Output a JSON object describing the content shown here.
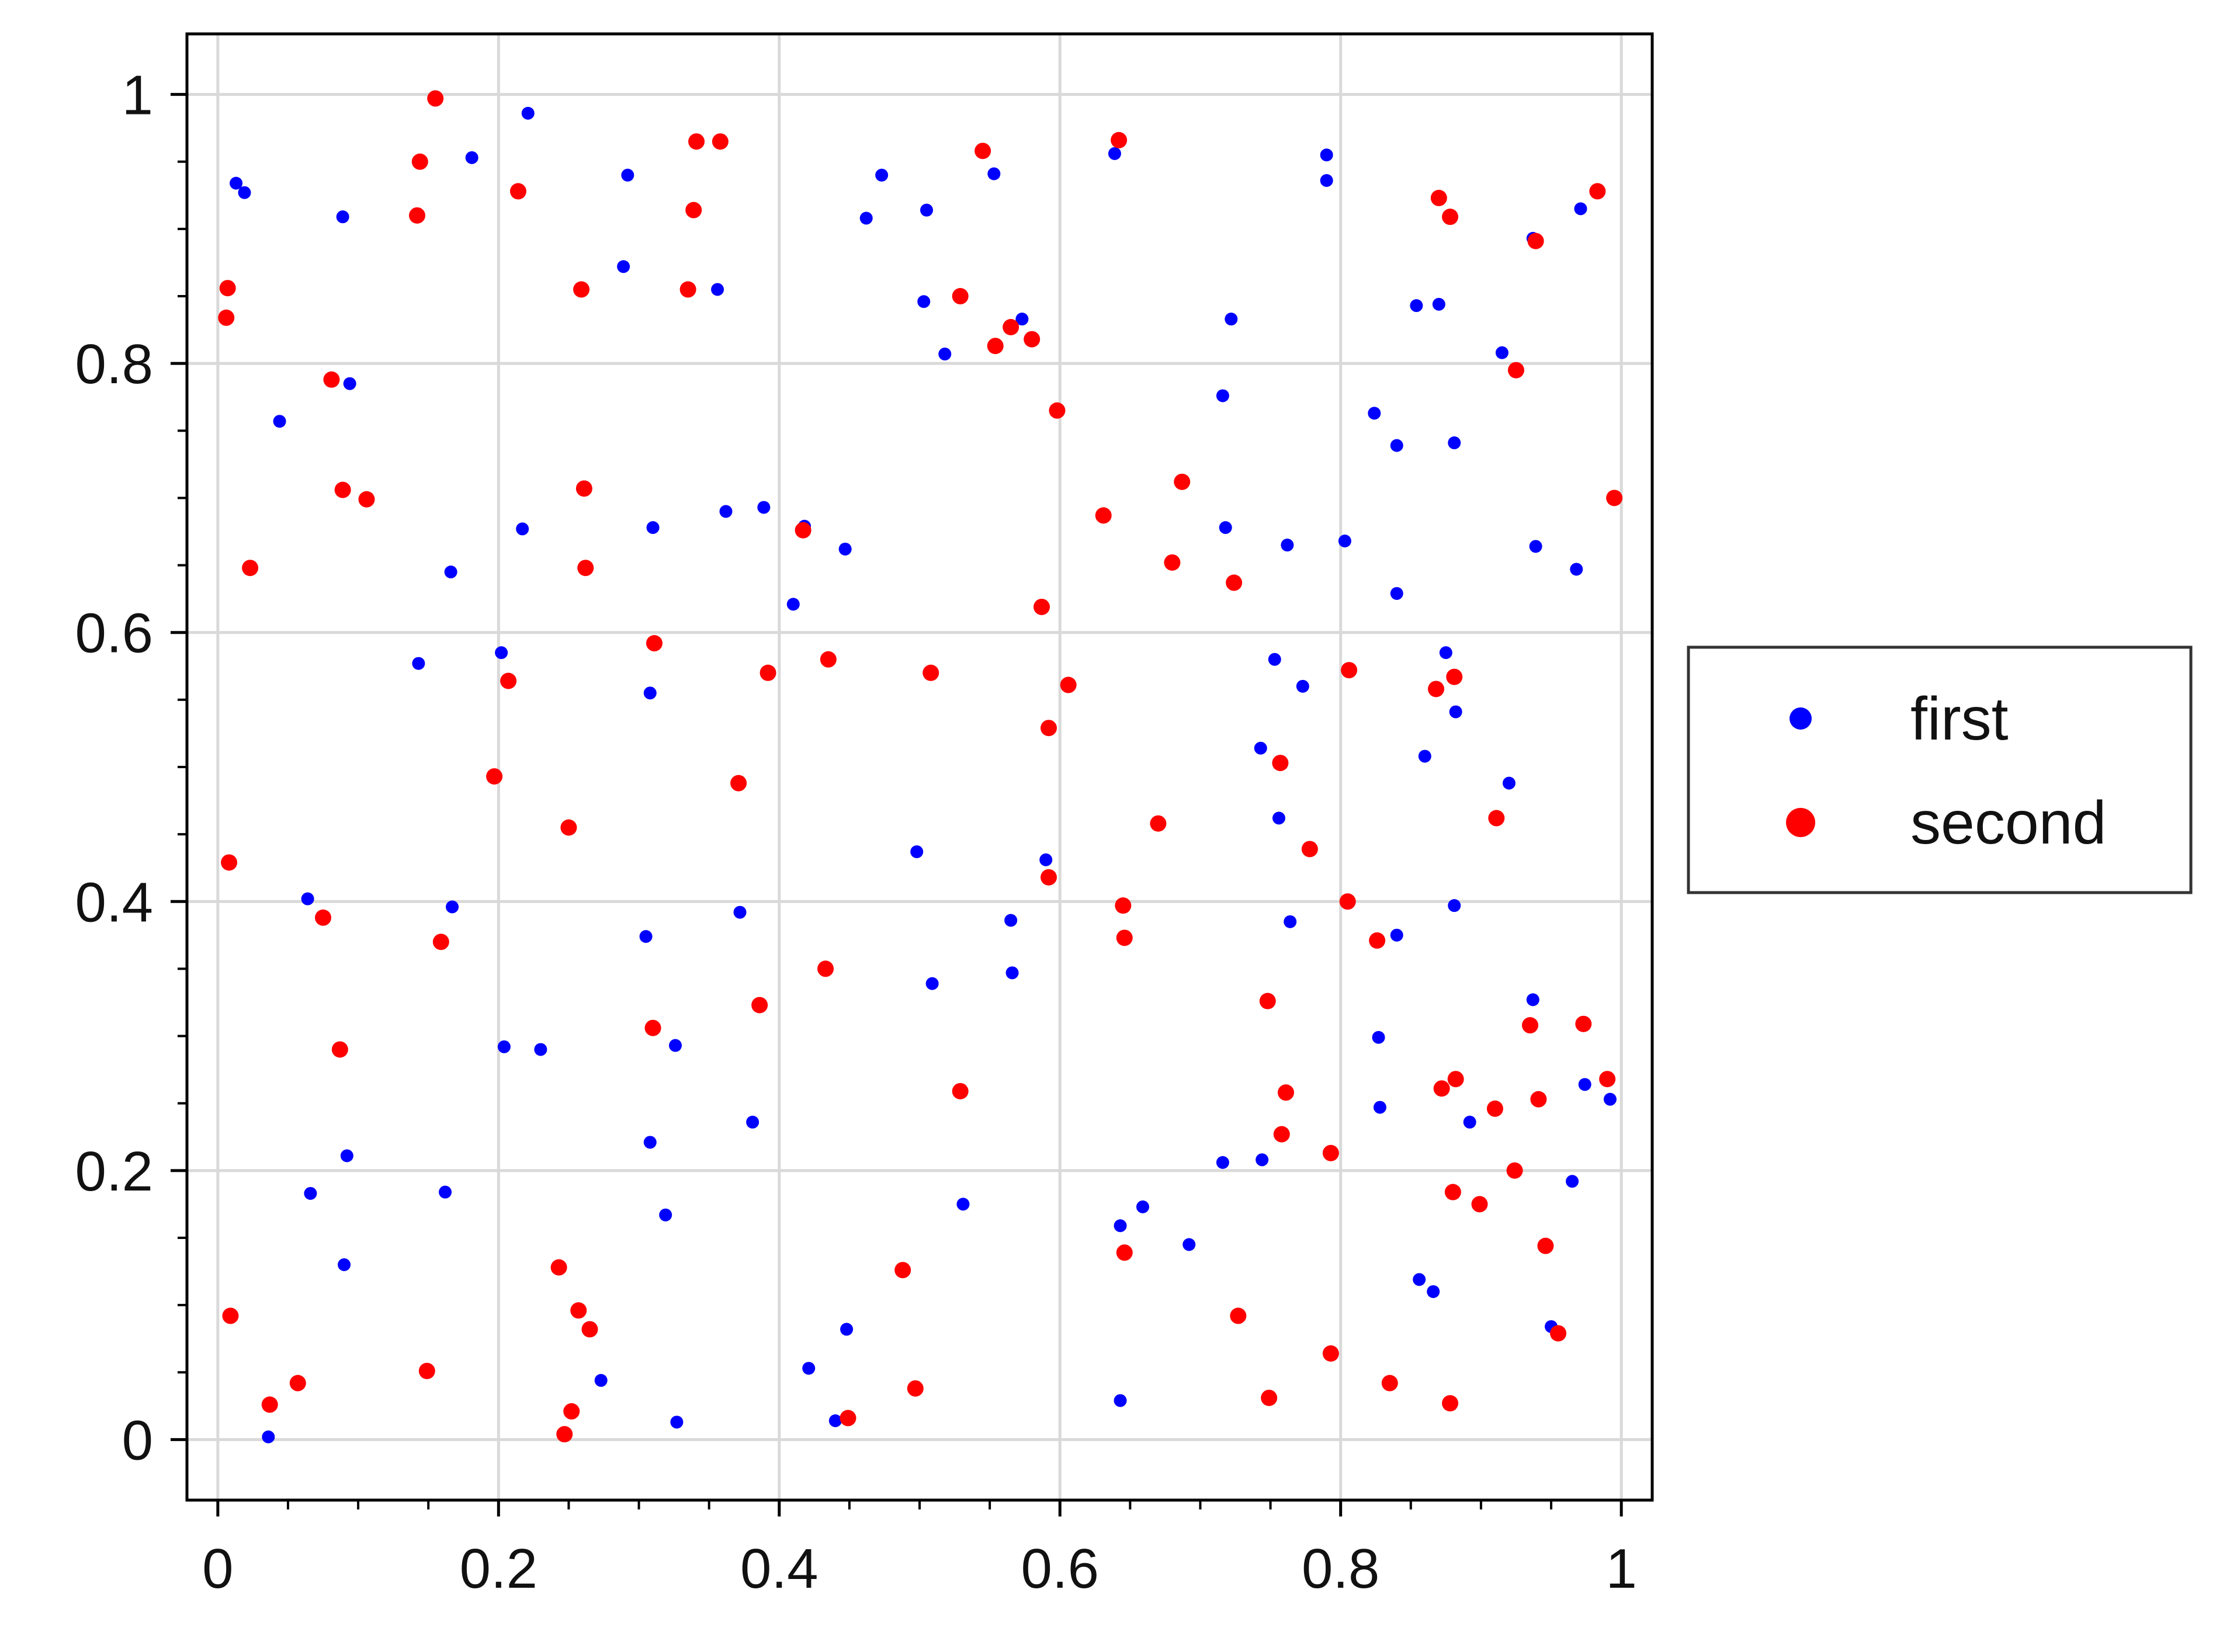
{
  "chart_data": {
    "type": "scatter",
    "title": "",
    "xlabel": "",
    "ylabel": "",
    "xlim": [
      -0.022,
      1.022
    ],
    "ylim": [
      -0.045,
      1.045
    ],
    "grid": true,
    "legend_placement": "outside-right",
    "x_ticks": [
      0,
      0.2,
      0.4,
      0.6,
      0.8,
      1
    ],
    "x_tick_labels": [
      "0",
      "0.2",
      "0.4",
      "0.6",
      "0.8",
      "1"
    ],
    "y_ticks": [
      0,
      0.2,
      0.4,
      0.6,
      0.8,
      1
    ],
    "y_tick_labels": [
      "0",
      "0.2",
      "0.4",
      "0.6",
      "0.8",
      "1"
    ],
    "series": [
      {
        "name": "first",
        "color": "#0000ff",
        "points": [
          [
            0.013,
            0.934
          ],
          [
            0.019,
            0.927
          ],
          [
            0.089,
            0.909
          ],
          [
            0.044,
            0.757
          ],
          [
            0.094,
            0.785
          ],
          [
            0.166,
            0.645
          ],
          [
            0.143,
            0.577
          ],
          [
            0.064,
            0.402
          ],
          [
            0.167,
            0.396
          ],
          [
            0.066,
            0.183
          ],
          [
            0.092,
            0.211
          ],
          [
            0.09,
            0.13
          ],
          [
            0.036,
            0.002
          ],
          [
            0.162,
            0.184
          ],
          [
            0.181,
            0.953
          ],
          [
            0.221,
            0.986
          ],
          [
            0.292,
            0.94
          ],
          [
            0.289,
            0.872
          ],
          [
            0.217,
            0.677
          ],
          [
            0.31,
            0.678
          ],
          [
            0.202,
            0.585
          ],
          [
            0.308,
            0.555
          ],
          [
            0.305,
            0.374
          ],
          [
            0.204,
            0.292
          ],
          [
            0.23,
            0.29
          ],
          [
            0.326,
            0.293
          ],
          [
            0.308,
            0.221
          ],
          [
            0.319,
            0.167
          ],
          [
            0.273,
            0.044
          ],
          [
            0.327,
            0.013
          ],
          [
            0.356,
            0.855
          ],
          [
            0.362,
            0.69
          ],
          [
            0.389,
            0.693
          ],
          [
            0.418,
            0.679
          ],
          [
            0.447,
            0.662
          ],
          [
            0.41,
            0.621
          ],
          [
            0.372,
            0.392
          ],
          [
            0.381,
            0.236
          ],
          [
            0.421,
            0.053
          ],
          [
            0.44,
            0.014
          ],
          [
            0.448,
            0.082
          ],
          [
            0.473,
            0.94
          ],
          [
            0.462,
            0.908
          ],
          [
            0.505,
            0.914
          ],
          [
            0.503,
            0.846
          ],
          [
            0.518,
            0.807
          ],
          [
            0.553,
            0.941
          ],
          [
            0.573,
            0.833
          ],
          [
            0.498,
            0.437
          ],
          [
            0.509,
            0.339
          ],
          [
            0.565,
            0.386
          ],
          [
            0.566,
            0.347
          ],
          [
            0.59,
            0.431
          ],
          [
            0.531,
            0.175
          ],
          [
            0.639,
            0.956
          ],
          [
            0.716,
            0.776
          ],
          [
            0.722,
            0.833
          ],
          [
            0.718,
            0.678
          ],
          [
            0.762,
            0.665
          ],
          [
            0.753,
            0.58
          ],
          [
            0.773,
            0.56
          ],
          [
            0.743,
            0.514
          ],
          [
            0.756,
            0.462
          ],
          [
            0.764,
            0.385
          ],
          [
            0.643,
            0.159
          ],
          [
            0.659,
            0.173
          ],
          [
            0.692,
            0.145
          ],
          [
            0.716,
            0.206
          ],
          [
            0.744,
            0.208
          ],
          [
            0.643,
            0.029
          ],
          [
            0.79,
            0.955
          ],
          [
            0.79,
            0.936
          ],
          [
            0.854,
            0.843
          ],
          [
            0.87,
            0.844
          ],
          [
            0.824,
            0.763
          ],
          [
            0.84,
            0.739
          ],
          [
            0.881,
            0.741
          ],
          [
            0.803,
            0.668
          ],
          [
            0.84,
            0.629
          ],
          [
            0.875,
            0.585
          ],
          [
            0.882,
            0.541
          ],
          [
            0.86,
            0.508
          ],
          [
            0.84,
            0.375
          ],
          [
            0.881,
            0.397
          ],
          [
            0.827,
            0.299
          ],
          [
            0.828,
            0.247
          ],
          [
            0.856,
            0.119
          ],
          [
            0.866,
            0.11
          ],
          [
            0.892,
            0.236
          ],
          [
            0.937,
            0.893
          ],
          [
            0.971,
            0.915
          ],
          [
            0.915,
            0.808
          ],
          [
            0.939,
            0.664
          ],
          [
            0.968,
            0.647
          ],
          [
            0.92,
            0.488
          ],
          [
            0.937,
            0.327
          ],
          [
            0.974,
            0.264
          ],
          [
            0.992,
            0.253
          ],
          [
            0.965,
            0.192
          ],
          [
            0.95,
            0.084
          ]
        ]
      },
      {
        "name": "second",
        "color": "#ff0000",
        "points": [
          [
            0.155,
            0.997
          ],
          [
            0.144,
            0.95
          ],
          [
            0.142,
            0.91
          ],
          [
            0.007,
            0.856
          ],
          [
            0.006,
            0.834
          ],
          [
            0.081,
            0.788
          ],
          [
            0.089,
            0.706
          ],
          [
            0.106,
            0.699
          ],
          [
            0.023,
            0.648
          ],
          [
            0.008,
            0.429
          ],
          [
            0.075,
            0.388
          ],
          [
            0.159,
            0.37
          ],
          [
            0.087,
            0.29
          ],
          [
            0.009,
            0.092
          ],
          [
            0.037,
            0.026
          ],
          [
            0.057,
            0.042
          ],
          [
            0.149,
            0.051
          ],
          [
            0.214,
            0.928
          ],
          [
            0.259,
            0.855
          ],
          [
            0.261,
            0.707
          ],
          [
            0.262,
            0.648
          ],
          [
            0.207,
            0.564
          ],
          [
            0.197,
            0.493
          ],
          [
            0.25,
            0.455
          ],
          [
            0.243,
            0.128
          ],
          [
            0.257,
            0.096
          ],
          [
            0.265,
            0.082
          ],
          [
            0.252,
            0.021
          ],
          [
            0.247,
            0.004
          ],
          [
            0.341,
            0.965
          ],
          [
            0.358,
            0.965
          ],
          [
            0.339,
            0.914
          ],
          [
            0.335,
            0.855
          ],
          [
            0.311,
            0.592
          ],
          [
            0.392,
            0.57
          ],
          [
            0.371,
            0.488
          ],
          [
            0.31,
            0.306
          ],
          [
            0.386,
            0.323
          ],
          [
            0.435,
            0.58
          ],
          [
            0.417,
            0.676
          ],
          [
            0.433,
            0.35
          ],
          [
            0.449,
            0.016
          ],
          [
            0.545,
            0.958
          ],
          [
            0.529,
            0.85
          ],
          [
            0.565,
            0.827
          ],
          [
            0.554,
            0.813
          ],
          [
            0.58,
            0.818
          ],
          [
            0.508,
            0.57
          ],
          [
            0.488,
            0.126
          ],
          [
            0.497,
            0.038
          ],
          [
            0.529,
            0.259
          ],
          [
            0.642,
            0.966
          ],
          [
            0.598,
            0.765
          ],
          [
            0.631,
            0.687
          ],
          [
            0.587,
            0.619
          ],
          [
            0.606,
            0.561
          ],
          [
            0.592,
            0.529
          ],
          [
            0.592,
            0.418
          ],
          [
            0.645,
            0.397
          ],
          [
            0.646,
            0.373
          ],
          [
            0.646,
            0.139
          ],
          [
            0.687,
            0.712
          ],
          [
            0.68,
            0.652
          ],
          [
            0.724,
            0.637
          ],
          [
            0.67,
            0.458
          ],
          [
            0.757,
            0.503
          ],
          [
            0.778,
            0.439
          ],
          [
            0.748,
            0.326
          ],
          [
            0.761,
            0.258
          ],
          [
            0.758,
            0.227
          ],
          [
            0.727,
            0.092
          ],
          [
            0.749,
            0.031
          ],
          [
            0.87,
            0.923
          ],
          [
            0.878,
            0.909
          ],
          [
            0.806,
            0.572
          ],
          [
            0.868,
            0.558
          ],
          [
            0.881,
            0.567
          ],
          [
            0.805,
            0.4
          ],
          [
            0.826,
            0.371
          ],
          [
            0.793,
            0.213
          ],
          [
            0.872,
            0.261
          ],
          [
            0.882,
            0.268
          ],
          [
            0.88,
            0.184
          ],
          [
            0.899,
            0.175
          ],
          [
            0.793,
            0.064
          ],
          [
            0.835,
            0.042
          ],
          [
            0.878,
            0.027
          ],
          [
            0.983,
            0.928
          ],
          [
            0.939,
            0.891
          ],
          [
            0.925,
            0.795
          ],
          [
            0.995,
            0.7
          ],
          [
            0.911,
            0.462
          ],
          [
            0.935,
            0.308
          ],
          [
            0.973,
            0.309
          ],
          [
            0.91,
            0.246
          ],
          [
            0.941,
            0.253
          ],
          [
            0.99,
            0.268
          ],
          [
            0.924,
            0.2
          ],
          [
            0.946,
            0.144
          ],
          [
            0.955,
            0.079
          ]
        ]
      }
    ]
  }
}
